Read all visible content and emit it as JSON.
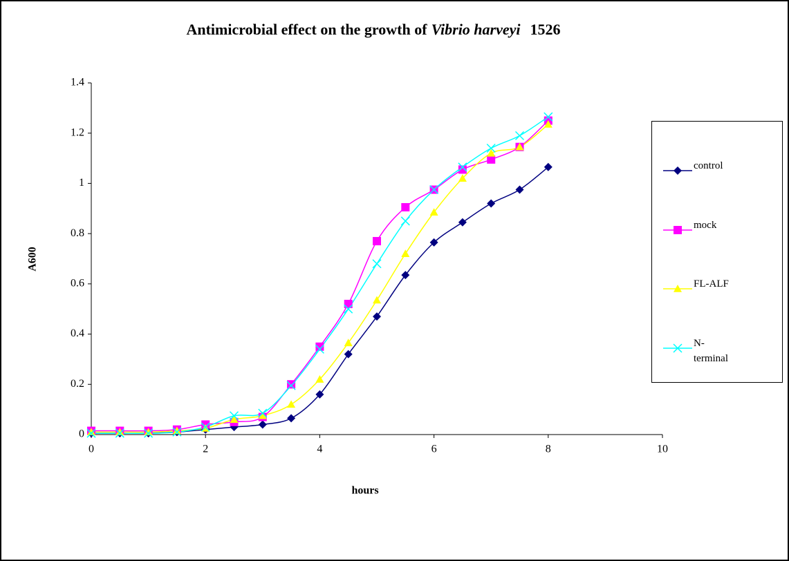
{
  "chart_data": {
    "type": "line",
    "title": [
      {
        "text": "Antimicrobial effect on the growth of",
        "italic": false
      },
      {
        "text": "Vibrio harveyi",
        "italic": true
      },
      {
        "text": "1526",
        "italic": false
      }
    ],
    "x_label": "hours",
    "y_label": "A600",
    "x": [
      0,
      0.5,
      1,
      1.5,
      2,
      2.5,
      3,
      3.5,
      4,
      4.5,
      5,
      5.5,
      6,
      6.5,
      7,
      7.5,
      8
    ],
    "series": [
      {
        "name": "control",
        "color": "#000080",
        "marker": "diamond",
        "values": [
          0.005,
          0.005,
          0.005,
          0.01,
          0.02,
          0.03,
          0.04,
          0.065,
          0.16,
          0.32,
          0.47,
          0.635,
          0.765,
          0.845,
          0.92,
          0.975,
          1.065
        ]
      },
      {
        "name": "mock",
        "color": "#ff00ff",
        "marker": "square",
        "values": [
          0.015,
          0.015,
          0.015,
          0.02,
          0.04,
          0.05,
          0.07,
          0.2,
          0.35,
          0.52,
          0.77,
          0.905,
          0.975,
          1.055,
          1.095,
          1.145,
          1.25
        ]
      },
      {
        "name": "FL-ALF",
        "color": "#ffff00",
        "marker": "triangle",
        "values": [
          0.01,
          0.01,
          0.01,
          0.015,
          0.025,
          0.06,
          0.075,
          0.12,
          0.22,
          0.365,
          0.535,
          0.72,
          0.885,
          1.02,
          1.12,
          1.145,
          1.235
        ]
      },
      {
        "name": "N-terminal",
        "color": "#00ffff",
        "marker": "x",
        "values": [
          0.005,
          0.005,
          0.005,
          0.01,
          0.03,
          0.075,
          0.085,
          0.195,
          0.34,
          0.5,
          0.68,
          0.85,
          0.975,
          1.065,
          1.14,
          1.19,
          1.265
        ]
      }
    ],
    "xlim": [
      0,
      10
    ],
    "xticks": [
      0,
      2,
      4,
      6,
      8,
      10
    ],
    "ylim": [
      0,
      1.4
    ],
    "yticks": [
      0,
      0.2,
      0.4,
      0.6,
      0.8,
      1,
      1.2,
      1.4
    ],
    "legend": "right"
  }
}
